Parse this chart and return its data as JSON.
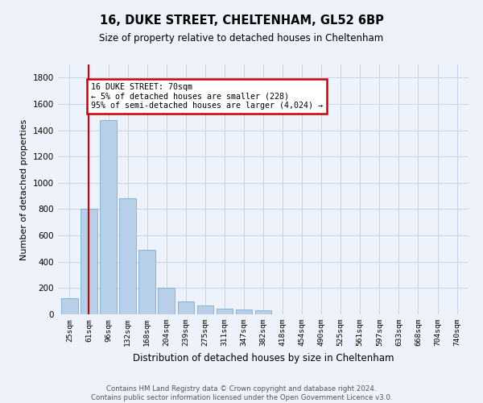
{
  "title": "16, DUKE STREET, CHELTENHAM, GL52 6BP",
  "subtitle": "Size of property relative to detached houses in Cheltenham",
  "xlabel": "Distribution of detached houses by size in Cheltenham",
  "ylabel": "Number of detached properties",
  "categories": [
    "25sqm",
    "61sqm",
    "96sqm",
    "132sqm",
    "168sqm",
    "204sqm",
    "239sqm",
    "275sqm",
    "311sqm",
    "347sqm",
    "382sqm",
    "418sqm",
    "454sqm",
    "490sqm",
    "525sqm",
    "561sqm",
    "597sqm",
    "633sqm",
    "668sqm",
    "704sqm",
    "740sqm"
  ],
  "values": [
    120,
    800,
    1480,
    880,
    490,
    205,
    100,
    65,
    40,
    35,
    28,
    0,
    0,
    0,
    0,
    0,
    0,
    0,
    0,
    0,
    0
  ],
  "bar_color": "#b8cfe8",
  "bar_edge_color": "#7aaed4",
  "vline_x": 1.0,
  "vline_color": "#cc0000",
  "annotation_text": "16 DUKE STREET: 70sqm\n← 5% of detached houses are smaller (228)\n95% of semi-detached houses are larger (4,024) →",
  "annotation_box_color": "#ffffff",
  "annotation_box_edge_color": "#cc0000",
  "ylim": [
    0,
    1900
  ],
  "yticks": [
    0,
    200,
    400,
    600,
    800,
    1000,
    1200,
    1400,
    1600,
    1800
  ],
  "footer_line1": "Contains HM Land Registry data © Crown copyright and database right 2024.",
  "footer_line2": "Contains public sector information licensed under the Open Government Licence v3.0.",
  "background_color": "#eef2fa",
  "grid_color": "#c8d4e8"
}
